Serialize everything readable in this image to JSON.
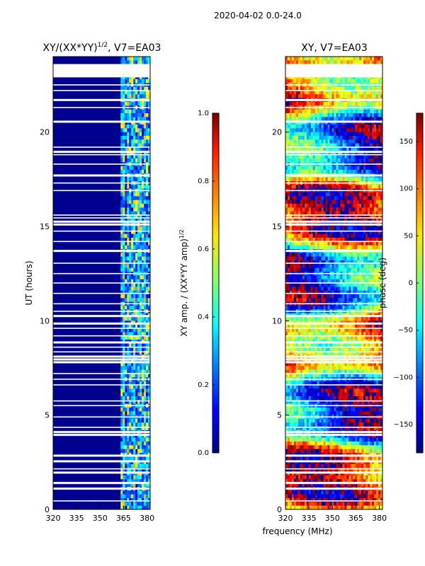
{
  "chart_data": {
    "suptitle": "2020-04-02 0.0-24.0",
    "shared_xlabel": "frequency (MHz)",
    "panels": [
      {
        "type": "heatmap",
        "title_main": "XY/(XX*YY)",
        "title_sup": "1/2",
        "title_rest": ", V7=EA03",
        "ylabel": "UT (hours)",
        "xlim": [
          320,
          382
        ],
        "ylim": [
          0,
          24
        ],
        "xticks": [
          "320",
          "335",
          "350",
          "365",
          "380"
        ],
        "yticks": [
          "0",
          "5",
          "10",
          "15",
          "20"
        ],
        "colorbar": {
          "label_main": "XY amp. / (XX*YY amp)",
          "label_sup": "1/2",
          "range": [
            0.0,
            1.0
          ],
          "ticks": [
            "0.0",
            "0.2",
            "0.4",
            "0.6",
            "0.8",
            "1.0"
          ],
          "colormap": "jet"
        }
      },
      {
        "type": "heatmap",
        "title": "XY, V7=EA03",
        "xlim": [
          320,
          382
        ],
        "ylim": [
          0,
          24
        ],
        "xticks": [
          "320",
          "335",
          "350",
          "365",
          "380"
        ],
        "yticks": [
          "0",
          "5",
          "10",
          "15",
          "20"
        ],
        "colorbar": {
          "label": "phase (deg)",
          "range": [
            -180,
            180
          ],
          "ticks": [
            "−150",
            "−100",
            "−50",
            "0",
            "50",
            "100",
            "150"
          ],
          "colormap": "jet"
        }
      }
    ],
    "flagged_hours": [
      23.1,
      23.25,
      23.4,
      23.55,
      22.5,
      22.2,
      21.7,
      21.3,
      20.55,
      19.2,
      18.95,
      18.8,
      18.3,
      17.7,
      17.3,
      16.9,
      15.6,
      15.45,
      15.25,
      15.1,
      14.75,
      14.2,
      13.7,
      13.05,
      12.5,
      12.0,
      11.45,
      10.9,
      10.5,
      10.25,
      9.85,
      9.6,
      9.2,
      8.85,
      8.6,
      8.35,
      8.1,
      7.95,
      7.8,
      7.2,
      6.9,
      6.6,
      5.75,
      5.5,
      4.9,
      4.35,
      4.1,
      3.95,
      2.85,
      2.55,
      2.15,
      1.95,
      1.4,
      1.1,
      0.45
    ]
  }
}
